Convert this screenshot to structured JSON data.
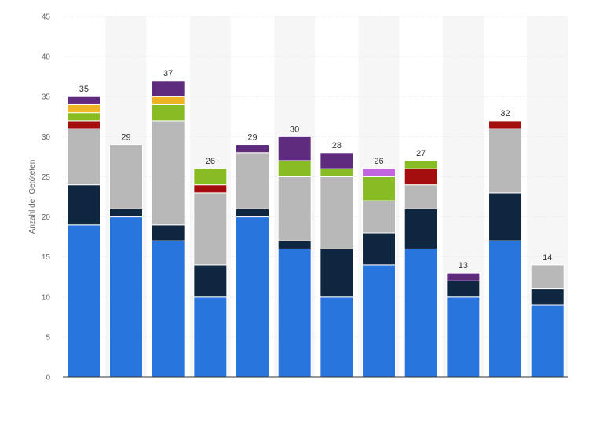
{
  "chart_data": {
    "type": "bar",
    "stacked": true,
    "title": "",
    "xlabel": "",
    "ylabel": "Anzahl der Getöteten",
    "ylim": [
      0,
      45
    ],
    "yticks": [
      0,
      5,
      10,
      15,
      20,
      25,
      30,
      35,
      40,
      45
    ],
    "categories": [
      "",
      "",
      "",
      "",
      "",
      "",
      "",
      "",
      "",
      "",
      "",
      ""
    ],
    "totals": [
      35,
      29,
      37,
      26,
      29,
      30,
      28,
      26,
      27,
      13,
      32,
      14
    ],
    "grid": true,
    "legend": "none",
    "series": [
      {
        "name": "blue",
        "color": "#2876dd",
        "values": [
          19,
          20,
          17,
          10,
          20,
          16,
          10,
          14,
          16,
          10,
          17,
          9
        ]
      },
      {
        "name": "navy",
        "color": "#0f2640",
        "values": [
          5,
          1,
          2,
          4,
          1,
          1,
          6,
          4,
          5,
          2,
          6,
          2
        ]
      },
      {
        "name": "gray",
        "color": "#b8b8b8",
        "values": [
          7,
          8,
          13,
          9,
          7,
          8,
          9,
          4,
          3,
          0,
          8,
          3
        ]
      },
      {
        "name": "red",
        "color": "#a50e0e",
        "values": [
          1,
          0,
          0,
          1,
          0,
          0,
          0,
          0,
          2,
          0,
          1,
          0
        ]
      },
      {
        "name": "green",
        "color": "#87bc24",
        "values": [
          1,
          0,
          2,
          2,
          0,
          2,
          1,
          3,
          1,
          0,
          0,
          0
        ]
      },
      {
        "name": "light-purple",
        "color": "#c266e0",
        "values": [
          0,
          0,
          0,
          0,
          0,
          0,
          0,
          1,
          0,
          0,
          0,
          0
        ]
      },
      {
        "name": "orange",
        "color": "#f0b323",
        "values": [
          1,
          0,
          1,
          0,
          0,
          0,
          0,
          0,
          0,
          0,
          0,
          0
        ]
      },
      {
        "name": "purple",
        "color": "#5e2b7e",
        "values": [
          1,
          0,
          2,
          0,
          1,
          3,
          2,
          0,
          0,
          1,
          0,
          0
        ]
      }
    ]
  }
}
